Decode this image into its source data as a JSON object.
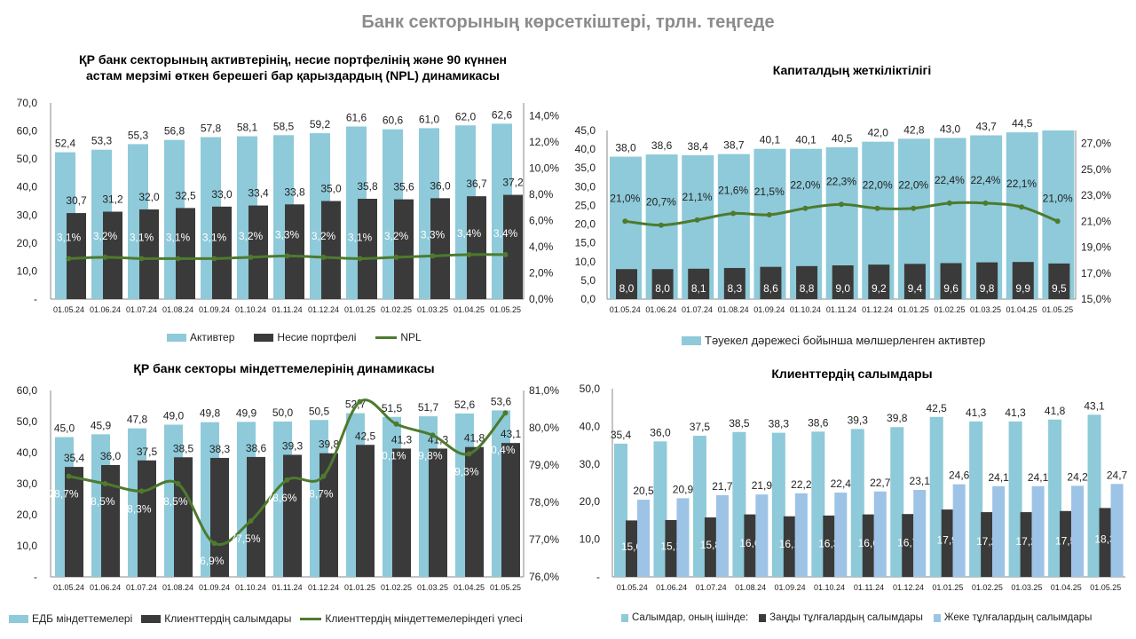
{
  "main_title": "Банк секторының көрсеткіштері, трлн. теңгеде",
  "colors": {
    "assets": "#8ecad9",
    "dark": "#3a3a3a",
    "line": "#4e7a2e",
    "light": "#9dc3e6"
  },
  "chart_data": [
    {
      "type": "bar",
      "title": "ҚР банк секторының активтерінің, несие портфелінің және 90 күннен астам мерзімі өткен берешегі бар қарыздардың (NPL) динамикасы",
      "categories": [
        "01.05.24",
        "01.06.24",
        "01.07.24",
        "01.08.24",
        "01.09.24",
        "01.10.24",
        "01.11.24",
        "01.12.24",
        "01.01.25",
        "01.02.25",
        "01.03.25",
        "01.04.25",
        "01.05.25"
      ],
      "ylim": [
        0,
        70
      ],
      "yticks": [
        "-",
        "10,0",
        "20,0",
        "30,0",
        "40,0",
        "50,0",
        "60,0",
        "70,0"
      ],
      "y2lim": [
        0,
        15
      ],
      "y2ticks": [
        "0,0%",
        "2,0%",
        "4,0%",
        "6,0%",
        "8,0%",
        "10,0%",
        "12,0%",
        "14,0%"
      ],
      "legend_position": "bottom",
      "series": [
        {
          "name": "Активтер",
          "kind": "bar",
          "color": "#8ecad9",
          "values": [
            52.4,
            53.3,
            55.3,
            56.8,
            57.8,
            58.1,
            58.5,
            59.2,
            61.6,
            60.6,
            61.0,
            62.0,
            62.6
          ]
        },
        {
          "name": "Несие портфелі",
          "kind": "bar",
          "color": "#3a3a3a",
          "values": [
            30.7,
            31.2,
            32.0,
            32.5,
            33.0,
            33.4,
            33.8,
            35.0,
            35.8,
            35.6,
            36.0,
            36.7,
            37.2
          ]
        },
        {
          "name": "NPL",
          "kind": "line",
          "axis": "right",
          "unit": "%",
          "color": "#4e7a2e",
          "values": [
            3.1,
            3.2,
            3.1,
            3.1,
            3.1,
            3.2,
            3.3,
            3.2,
            3.1,
            3.2,
            3.3,
            3.4,
            3.4
          ]
        }
      ]
    },
    {
      "type": "bar",
      "title": "Капиталдың жеткіліктілігі",
      "categories": [
        "01.05.24",
        "01.06.24",
        "01.07.24",
        "01.08.24",
        "01.09.24",
        "01.10.24",
        "01.11.24",
        "01.12.24",
        "01.01.25",
        "01.02.25",
        "01.03.25",
        "01.04.25",
        "01.05.25"
      ],
      "ylim": [
        0,
        45
      ],
      "yticks": [
        "0,0",
        "5,0",
        "10,0",
        "15,0",
        "20,0",
        "25,0",
        "30,0",
        "35,0",
        "40,0",
        "45,0"
      ],
      "y2lim": [
        15,
        28
      ],
      "y2ticks": [
        "15,0%",
        "17,0%",
        "19,0%",
        "21,0%",
        "23,0%",
        "25,0%",
        "27,0%"
      ],
      "legend_position": "bottom",
      "series": [
        {
          "name": "Тәуекел дәрежесі бойынша мөлшерленген активтер",
          "kind": "bar",
          "color": "#8ecad9",
          "values": [
            38.0,
            38.6,
            38.4,
            38.7,
            40.1,
            40.1,
            40.5,
            42.0,
            42.8,
            43.0,
            43.7,
            44.5,
            45.0
          ],
          "hidden_labels": [
            12
          ]
        },
        {
          "kind": "bar",
          "color": "#3a3a3a",
          "values": [
            8.0,
            8.0,
            8.1,
            8.3,
            8.6,
            8.8,
            9.0,
            9.2,
            9.4,
            9.6,
            9.8,
            9.9,
            9.5
          ]
        },
        {
          "kind": "line",
          "axis": "right",
          "unit": "%",
          "color": "#4e7a2e",
          "values": [
            21.0,
            20.7,
            21.1,
            21.6,
            21.5,
            22.0,
            22.3,
            22.0,
            22.0,
            22.4,
            22.4,
            22.1,
            21.0
          ]
        }
      ]
    },
    {
      "type": "bar",
      "title": "ҚР банк секторы міндеттемелерінің динамикасы",
      "categories": [
        "01.05.24",
        "01.06.24",
        "01.07.24",
        "01.08.24",
        "01.09.24",
        "01.10.24",
        "01.11.24",
        "01.12.24",
        "01.01.25",
        "01.02.25",
        "01.03.25",
        "01.04.25",
        "01.05.25"
      ],
      "ylim": [
        0,
        60
      ],
      "yticks": [
        "-",
        "10,0",
        "20,0",
        "30,0",
        "40,0",
        "50,0",
        "60,0"
      ],
      "y2lim": [
        76,
        81
      ],
      "y2ticks": [
        "76,0%",
        "77,0%",
        "78,0%",
        "79,0%",
        "80,0%",
        "81,0%"
      ],
      "legend_position": "bottom",
      "series": [
        {
          "name": "ЕДБ міндеттемелері",
          "kind": "bar",
          "color": "#8ecad9",
          "values": [
            45.0,
            45.9,
            47.8,
            49.0,
            49.8,
            49.9,
            50.0,
            50.5,
            52.7,
            51.5,
            51.7,
            52.6,
            53.6
          ]
        },
        {
          "name": "Клиенттердің салымдары",
          "kind": "bar",
          "color": "#3a3a3a",
          "values": [
            35.4,
            36.0,
            37.5,
            38.5,
            38.3,
            38.6,
            39.3,
            39.8,
            42.5,
            41.3,
            41.3,
            41.8,
            43.1
          ]
        },
        {
          "name": "Клиенттердің міндеттемелеріндегі үлесі",
          "kind": "line",
          "axis": "right",
          "unit": "%",
          "color": "#4e7a2e",
          "values": [
            78.7,
            78.5,
            78.3,
            78.5,
            76.9,
            77.5,
            78.6,
            78.7,
            80.7,
            80.1,
            79.8,
            79.3,
            80.4
          ],
          "hidden_labels": [
            8
          ]
        }
      ]
    },
    {
      "type": "bar",
      "title": "Клиенттердің салымдары",
      "categories": [
        "01.05.24",
        "01.06.24",
        "01.07.24",
        "01.08.24",
        "01.09.24",
        "01.10.24",
        "01.11.24",
        "01.12.24",
        "01.01.25",
        "01.02.25",
        "01.03.25",
        "01.04.25",
        "01.05.25"
      ],
      "ylim": [
        0,
        50
      ],
      "yticks": [
        "-",
        "10,0",
        "20,0",
        "30,0",
        "40,0",
        "50,0"
      ],
      "legend_position": "bottom",
      "series": [
        {
          "name": "Салымдар, оның ішінде:",
          "kind": "bar",
          "color": "#8ecad9",
          "values": [
            35.4,
            36.0,
            37.5,
            38.5,
            38.3,
            38.6,
            39.3,
            39.8,
            42.5,
            41.3,
            41.3,
            41.8,
            43.1
          ]
        },
        {
          "name": "Заңды тұлғалардың салымдары",
          "kind": "bar",
          "color": "#3a3a3a",
          "values": [
            15.0,
            15.1,
            15.8,
            16.6,
            16.1,
            16.3,
            16.6,
            16.7,
            17.9,
            17.2,
            17.2,
            17.5,
            18.3
          ]
        },
        {
          "name": "Жеке тұлғалардың салымдары",
          "kind": "bar",
          "color": "#9dc3e6",
          "values": [
            20.5,
            20.9,
            21.7,
            21.9,
            22.2,
            22.4,
            22.7,
            23.1,
            24.6,
            24.1,
            24.1,
            24.2,
            24.7
          ]
        }
      ]
    }
  ]
}
